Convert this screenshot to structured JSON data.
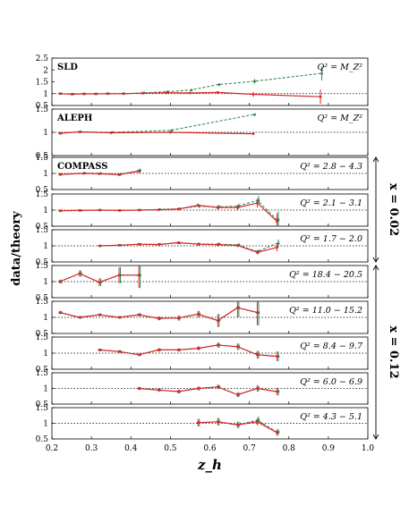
{
  "chart_data": {
    "type": "line",
    "xlabel": "z_h",
    "ylabel": "data/theory",
    "xlim": [
      0.2,
      1.0
    ],
    "x_ticks": [
      "0.2",
      "0.3",
      "0.4",
      "0.5",
      "0.6",
      "0.7",
      "0.8",
      "0.9",
      "1.0"
    ],
    "reference_line": 1,
    "colors": {
      "data": "#d62728",
      "comparison": "#2a8a55",
      "reference": "#000000"
    },
    "groups": [
      {
        "label": "x = 0.02",
        "panels": [
          2,
          3,
          4
        ]
      },
      {
        "label": "x = 0.12",
        "panels": [
          5,
          6,
          7,
          8,
          9
        ]
      }
    ],
    "panels": [
      {
        "experiment": "SLD",
        "q2_label": "Q² = M_Z²",
        "ylim": [
          0.5,
          2.5
        ],
        "y_ticks": [
          "0.5",
          "1",
          "1.5",
          "2",
          "2.5"
        ],
        "red_x": [
          0.22,
          0.25,
          0.28,
          0.31,
          0.34,
          0.38,
          0.43,
          0.49,
          0.55,
          0.62,
          0.71,
          0.88
        ],
        "red_y": [
          1.0,
          0.98,
          0.99,
          0.99,
          1.0,
          1.0,
          1.02,
          1.04,
          1.03,
          1.05,
          0.97,
          0.87
        ],
        "green_x": [
          0.22,
          0.25,
          0.28,
          0.31,
          0.34,
          0.38,
          0.43,
          0.49,
          0.55,
          0.62,
          0.71,
          0.88
        ],
        "green_y": [
          1.0,
          0.98,
          0.99,
          0.99,
          1.0,
          1.0,
          1.03,
          1.08,
          1.15,
          1.38,
          1.52,
          1.85
        ],
        "err": [
          0.02,
          0.02,
          0.02,
          0.02,
          0.02,
          0.02,
          0.03,
          0.03,
          0.04,
          0.06,
          0.1,
          0.3
        ]
      },
      {
        "experiment": "ALEPH",
        "q2_label": "Q² = M_Z²",
        "ylim": [
          0.5,
          1.5
        ],
        "y_ticks": [
          "0.5",
          "1",
          "1.5"
        ],
        "red_x": [
          0.22,
          0.27,
          0.35,
          0.5,
          0.71
        ],
        "red_y": [
          0.98,
          1.01,
          0.99,
          1.0,
          0.97
        ],
        "green_x": [
          0.22,
          0.27,
          0.35,
          0.5,
          0.71
        ],
        "green_y": [
          0.98,
          1.01,
          1.0,
          1.04,
          1.38
        ],
        "err": [
          0.02,
          0.02,
          0.02,
          0.02,
          0.03
        ]
      },
      {
        "experiment": "COMPASS",
        "q2_label": "Q² = 2.8 − 4.3",
        "ylim": [
          0.5,
          1.5
        ],
        "y_ticks": [
          "0.5",
          "1",
          "1.5"
        ],
        "red_x": [
          0.22,
          0.28,
          0.32,
          0.37,
          0.42
        ],
        "red_y": [
          0.97,
          1.0,
          0.99,
          0.96,
          1.07
        ],
        "green_x": [
          0.22,
          0.28,
          0.32,
          0.37,
          0.42
        ],
        "green_y": [
          0.97,
          1.01,
          1.0,
          0.97,
          1.09
        ],
        "err": [
          0.03,
          0.03,
          0.03,
          0.04,
          0.06
        ]
      },
      {
        "experiment": "",
        "q2_label": "Q² = 2.1 − 3.1",
        "ylim": [
          0.5,
          1.5
        ],
        "y_ticks": [
          "0.5",
          "1",
          "1.5"
        ],
        "red_x": [
          0.22,
          0.27,
          0.32,
          0.37,
          0.42,
          0.47,
          0.52,
          0.57,
          0.62,
          0.67,
          0.72,
          0.77
        ],
        "red_y": [
          0.98,
          0.99,
          1.0,
          0.99,
          1.0,
          1.01,
          1.03,
          1.15,
          1.08,
          1.08,
          1.22,
          0.65
        ],
        "green_x": [
          0.22,
          0.27,
          0.32,
          0.37,
          0.42,
          0.47,
          0.52,
          0.57,
          0.62,
          0.67,
          0.72,
          0.77
        ],
        "green_y": [
          0.98,
          0.99,
          1.0,
          0.99,
          1.0,
          1.02,
          1.04,
          1.12,
          1.1,
          1.12,
          1.3,
          0.7
        ],
        "err": [
          0.03,
          0.03,
          0.03,
          0.03,
          0.03,
          0.03,
          0.04,
          0.05,
          0.06,
          0.08,
          0.14,
          0.25
        ]
      },
      {
        "experiment": "",
        "q2_label": "Q² = 1.7 − 2.0",
        "ylim": [
          0.5,
          1.5
        ],
        "y_ticks": [
          "0.5",
          "1",
          "1.5"
        ],
        "red_x": [
          0.32,
          0.37,
          0.42,
          0.47,
          0.52,
          0.57,
          0.62,
          0.67,
          0.72,
          0.77
        ],
        "red_y": [
          1.0,
          1.02,
          1.05,
          1.04,
          1.1,
          1.05,
          1.04,
          1.01,
          0.8,
          0.95
        ],
        "green_x": [
          0.32,
          0.37,
          0.42,
          0.47,
          0.52,
          0.57,
          0.62,
          0.67,
          0.72,
          0.77
        ],
        "green_y": [
          1.0,
          1.02,
          1.05,
          1.05,
          1.09,
          1.06,
          1.05,
          1.03,
          0.82,
          1.08
        ],
        "err": [
          0.03,
          0.03,
          0.03,
          0.03,
          0.04,
          0.04,
          0.05,
          0.05,
          0.07,
          0.12
        ]
      },
      {
        "experiment": "",
        "q2_label": "Q² = 18.4 − 20.5",
        "ylim": [
          0.5,
          1.5
        ],
        "y_ticks": [
          "0.5",
          "1",
          "1.5"
        ],
        "red_x": [
          0.22,
          0.27,
          0.32,
          0.37,
          0.42
        ],
        "red_y": [
          1.0,
          1.25,
          0.98,
          1.2,
          1.2
        ],
        "green_x": [
          0.22,
          0.27,
          0.32,
          0.37,
          0.42
        ],
        "green_y": [
          1.0,
          1.25,
          0.98,
          1.2,
          1.2
        ],
        "err": [
          0.06,
          0.1,
          0.12,
          0.25,
          0.4
        ]
      },
      {
        "experiment": "",
        "q2_label": "Q² = 11.0 − 15.2",
        "ylim": [
          0.5,
          1.5
        ],
        "y_ticks": [
          "0.5",
          "1",
          "1.5"
        ],
        "red_x": [
          0.22,
          0.27,
          0.32,
          0.37,
          0.42,
          0.47,
          0.52,
          0.57,
          0.62,
          0.67,
          0.72
        ],
        "red_y": [
          1.15,
          1.0,
          1.08,
          1.0,
          1.08,
          0.97,
          0.98,
          1.1,
          0.9,
          1.3,
          1.15
        ],
        "green_x": [
          0.22,
          0.27,
          0.32,
          0.37,
          0.42,
          0.47,
          0.52,
          0.57,
          0.62,
          0.67,
          0.72
        ],
        "green_y": [
          1.15,
          1.0,
          1.08,
          1.0,
          1.08,
          0.97,
          0.98,
          1.1,
          0.9,
          1.3,
          1.15
        ],
        "err": [
          0.05,
          0.04,
          0.04,
          0.04,
          0.05,
          0.06,
          0.08,
          0.1,
          0.2,
          0.3,
          0.4
        ]
      },
      {
        "experiment": "",
        "q2_label": "Q² = 8.4 − 9.7",
        "ylim": [
          0.5,
          1.5
        ],
        "y_ticks": [
          "0.5",
          "1",
          "1.5"
        ],
        "red_x": [
          0.32,
          0.37,
          0.42,
          0.47,
          0.52,
          0.57,
          0.62,
          0.67,
          0.72,
          0.77
        ],
        "red_y": [
          1.1,
          1.05,
          0.95,
          1.1,
          1.1,
          1.15,
          1.25,
          1.2,
          0.95,
          0.9
        ],
        "green_x": [
          0.32,
          0.37,
          0.42,
          0.47,
          0.52,
          0.57,
          0.62,
          0.67,
          0.72,
          0.77
        ],
        "green_y": [
          1.1,
          1.05,
          0.95,
          1.1,
          1.1,
          1.15,
          1.25,
          1.2,
          0.95,
          0.9
        ],
        "err": [
          0.04,
          0.04,
          0.04,
          0.05,
          0.05,
          0.06,
          0.08,
          0.1,
          0.12,
          0.15
        ]
      },
      {
        "experiment": "",
        "q2_label": "Q² = 6.0 − 6.9",
        "ylim": [
          0.5,
          1.5
        ],
        "y_ticks": [
          "0.5",
          "1",
          "1.5"
        ],
        "red_x": [
          0.42,
          0.47,
          0.52,
          0.57,
          0.62,
          0.67,
          0.72,
          0.77
        ],
        "red_y": [
          1.0,
          0.95,
          0.9,
          1.0,
          1.05,
          0.8,
          1.0,
          0.9
        ],
        "green_x": [
          0.42,
          0.47,
          0.52,
          0.57,
          0.62,
          0.67,
          0.72,
          0.77
        ],
        "green_y": [
          1.0,
          0.95,
          0.9,
          1.0,
          1.05,
          0.8,
          1.0,
          0.9
        ],
        "err": [
          0.05,
          0.05,
          0.06,
          0.06,
          0.07,
          0.08,
          0.1,
          0.12
        ]
      },
      {
        "experiment": "",
        "q2_label": "Q² = 4.3 − 5.1",
        "ylim": [
          0.5,
          1.5
        ],
        "y_ticks": [
          "0.5",
          "1",
          "1.5"
        ],
        "red_x": [
          0.57,
          0.62,
          0.67,
          0.72,
          0.77
        ],
        "red_y": [
          1.02,
          1.05,
          0.95,
          1.05,
          0.7
        ],
        "green_x": [
          0.57,
          0.62,
          0.67,
          0.72,
          0.77
        ],
        "green_y": [
          1.02,
          1.05,
          0.95,
          1.1,
          0.72
        ],
        "err": [
          0.12,
          0.12,
          0.1,
          0.12,
          0.1
        ]
      }
    ]
  }
}
